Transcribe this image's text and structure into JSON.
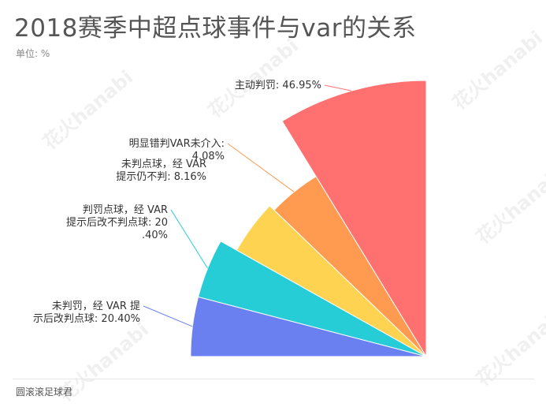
{
  "header": {
    "title": "2018赛季中超点球事件与var的关系",
    "unit": "单位: %"
  },
  "footer": {
    "source": "圆滚滚足球君"
  },
  "watermark": "花火hanabi",
  "chart_data": {
    "type": "pie",
    "subtype": "rose-sector",
    "title": "2018赛季中超点球事件与var的关系",
    "unit": "%",
    "slices": [
      {
        "label": "主动判罚",
        "value": 46.95,
        "display": "主动判罚: 46.95%",
        "color": "#ff7070",
        "label_lines": [
          "主动判罚: 46.95%"
        ]
      },
      {
        "label": "明显错判VAR未介入",
        "value": 4.08,
        "display": "明显错判VAR未介入: 4.08%",
        "color": "#ff9b50",
        "label_lines": [
          "明显错判VAR未介入:",
          "4.08%"
        ]
      },
      {
        "label": "未判点球，经 VAR 提示仍不判",
        "value": 8.16,
        "display": "未判点球，经 VAR 提示仍不判: 8.16%",
        "color": "#fdd351",
        "label_lines": [
          "未判点球，经 VAR",
          "提示仍不判: 8.16%"
        ]
      },
      {
        "label": "判罚点球，经 VAR 提示后改不判点球",
        "value": 20.4,
        "display": "判罚点球，经 VAR 提示后改不判点球: 20.40%",
        "color": "#26cdd7",
        "label_lines": [
          "判罚点球，经 VAR",
          "提示后改不判点球: 20",
          ".40%"
        ]
      },
      {
        "label": "未判罚，经 VAR 提示后改判点球",
        "value": 20.4,
        "display": "未判罚，经 VAR 提示后改判点球: 20.40%",
        "color": "#6b80f0",
        "label_lines": [
          "未判罚，经 VAR 提",
          "示后改判点球: 20.40%"
        ]
      }
    ]
  }
}
